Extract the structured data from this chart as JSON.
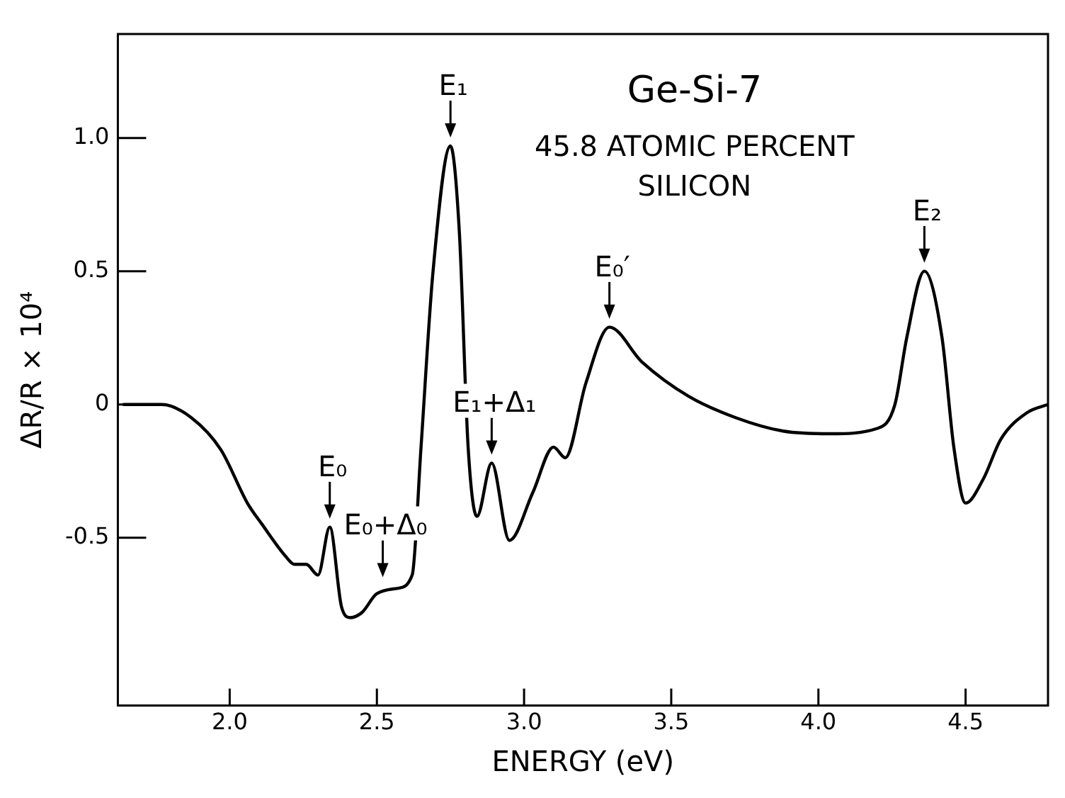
{
  "chart_data": {
    "type": "line",
    "title": "Ge-Si-7",
    "subtitle": "45.8 ATOMIC PERCENT SILICON",
    "xlabel": "ENERGY (eV)",
    "ylabel": "ΔR/R × 10⁴",
    "xlim": [
      1.62,
      4.78
    ],
    "ylim": [
      -1.13,
      1.39
    ],
    "xticks": [
      {
        "value": 2,
        "label": "2.0"
      },
      2.5,
      {
        "value": 3,
        "label": "3.0"
      },
      3.5,
      {
        "value": 4,
        "label": "4.0"
      },
      4.5
    ],
    "yticks": [
      -0.5,
      0,
      0.5,
      {
        "value": 1,
        "label": "1.0"
      }
    ],
    "grid": false,
    "legend": false,
    "marker": "none",
    "line_style": "solid",
    "series": [
      {
        "color": "#000000",
        "x": [
          1.64,
          1.77,
          1.87,
          1.97,
          2.06,
          2.11,
          2.19,
          2.22,
          2.26,
          2.3,
          2.34,
          2.38,
          2.41,
          2.45,
          2.5,
          2.57,
          2.62,
          2.65,
          2.69,
          2.75,
          2.78,
          2.81,
          2.84,
          2.89,
          2.95,
          3.03,
          3.1,
          3.14,
          3.21,
          3.29,
          3.4,
          3.56,
          3.72,
          3.88,
          4.04,
          4.2,
          4.26,
          4.3,
          4.36,
          4.42,
          4.46,
          4.5,
          4.56,
          4.62,
          4.71,
          4.78
        ],
        "values": [
          0,
          0,
          -0.05,
          -0.17,
          -0.37,
          -0.45,
          -0.57,
          -0.6,
          -0.6,
          -0.64,
          -0.46,
          -0.76,
          -0.8,
          -0.78,
          -0.71,
          -0.69,
          -0.64,
          -0.16,
          0.49,
          0.97,
          0.65,
          -0.16,
          -0.42,
          -0.22,
          -0.51,
          -0.33,
          -0.16,
          -0.2,
          0.08,
          0.29,
          0.16,
          0.03,
          -0.05,
          -0.1,
          -0.11,
          -0.09,
          0,
          0.25,
          0.5,
          0.25,
          -0.16,
          -0.37,
          -0.28,
          -0.13,
          -0.03,
          0
        ]
      }
    ],
    "annotations": [
      {
        "text": "E₀",
        "x": 2.34,
        "y": -0.46
      },
      {
        "text": "E₀+Δ₀",
        "x": 2.52,
        "y": -0.68
      },
      {
        "text": "E₁",
        "x": 2.75,
        "y": 0.97
      },
      {
        "text": "E₁+Δ₁",
        "x": 2.89,
        "y": -0.22
      },
      {
        "text": "E₀′",
        "x": 3.29,
        "y": 0.29
      },
      {
        "text": "E₂",
        "x": 4.36,
        "y": 0.5
      }
    ]
  }
}
